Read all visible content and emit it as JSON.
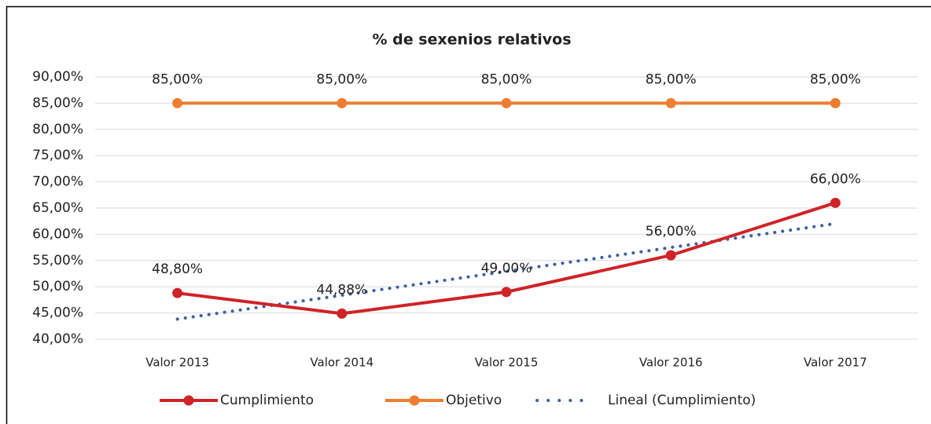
{
  "chart_data": {
    "type": "line",
    "title": "% de sexenios relativos",
    "categories": [
      "Valor 2013",
      "Valor 2014",
      "Valor 2015",
      "Valor 2016",
      "Valor 2017"
    ],
    "series": [
      {
        "name": "Cumplimiento",
        "color": "#cf2327",
        "values": [
          48.8,
          44.88,
          49,
          56,
          66
        ],
        "value_labels": [
          "48,80%",
          "44,88%",
          "49,00%",
          "56,00%",
          "66,00%"
        ],
        "style": "solid"
      },
      {
        "name": "Objetivo",
        "color": "#ed7d31",
        "values": [
          85,
          85,
          85,
          85,
          85
        ],
        "value_labels": [
          "85,00%",
          "85,00%",
          "85,00%",
          "85,00%",
          "85,00%"
        ],
        "style": "solid"
      },
      {
        "name": "Lineal (Cumplimiento)",
        "color": "#3f5f9e",
        "values": [
          43.832,
          48.384,
          52.936,
          57.488,
          62.04
        ],
        "style": "dotted"
      }
    ],
    "ylim": [
      40,
      90
    ],
    "yticks": [
      {
        "value": 40,
        "label": "40,00%"
      },
      {
        "value": 45,
        "label": "45,00%"
      },
      {
        "value": 50,
        "label": "50,00%"
      },
      {
        "value": 55,
        "label": "55,00%"
      },
      {
        "value": 60,
        "label": "60,00%"
      },
      {
        "value": 65,
        "label": "65,00%"
      },
      {
        "value": 70,
        "label": "70,00%"
      },
      {
        "value": 75,
        "label": "75,00%"
      },
      {
        "value": 80,
        "label": "80,00%"
      },
      {
        "value": 85,
        "label": "85,00%"
      },
      {
        "value": 90,
        "label": "90,00%"
      }
    ],
    "grid": true,
    "legend": "bottom"
  }
}
